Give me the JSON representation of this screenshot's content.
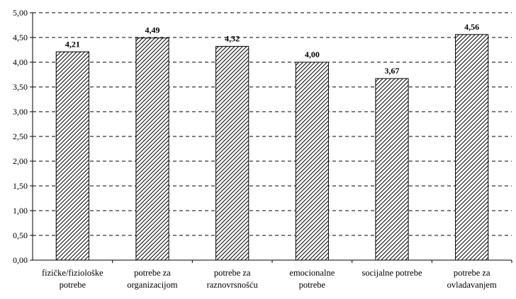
{
  "chart_data": {
    "type": "bar",
    "categories": [
      [
        "fizičke/fiziološke",
        "potrebe"
      ],
      [
        "potrebe za",
        "organizacijom"
      ],
      [
        "potrebe za",
        "raznovrsnošću"
      ],
      [
        "emocionalne",
        "potrebe"
      ],
      [
        "socijalne potrebe"
      ],
      [
        "potrebe za",
        "ovladavanjem"
      ]
    ],
    "values": [
      4.21,
      4.49,
      4.32,
      4.0,
      3.67,
      4.56
    ],
    "data_labels": [
      "4,21",
      "4,49",
      "4,32",
      "4,00",
      "3,67",
      "4,56"
    ],
    "yticks": [
      "0,00",
      "0,50",
      "1,00",
      "1,50",
      "2,00",
      "2,50",
      "3,00",
      "3,50",
      "4,00",
      "4,50",
      "5,00"
    ],
    "ylim": [
      0,
      5
    ],
    "grid": true,
    "grid_style": "dashed",
    "bar_pattern": "diagonal-hatch",
    "colors": {
      "bar_fill": "#ffffff",
      "hatch": "#000000",
      "grid": "#000000"
    },
    "title": "",
    "xlabel": "",
    "ylabel": ""
  }
}
